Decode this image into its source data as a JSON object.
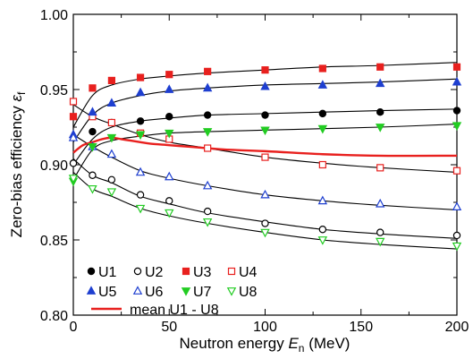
{
  "chart_data": {
    "type": "scatter",
    "xlabel": {
      "main": "Neutron energy ",
      "var": "E",
      "sub": "n",
      "unit": " (MeV)"
    },
    "ylabel": {
      "main": "Zero-bias efficiency ",
      "var": "ε",
      "sub": "f"
    },
    "xlim": [
      0,
      200
    ],
    "ylim": [
      0.8,
      1.0
    ],
    "xticks": [
      0,
      50,
      100,
      150,
      200
    ],
    "yticks": [
      0.8,
      0.85,
      0.9,
      0.95,
      1.0
    ],
    "yticklabels": [
      "0.80",
      "0.85",
      "0.90",
      "0.95",
      "1.00"
    ],
    "grid": false,
    "legend_position": "bottom-left",
    "series": [
      {
        "name": "U1",
        "marker": "circle",
        "filled": true,
        "color": "#000000",
        "x": [
          0,
          10,
          20,
          35,
          50,
          70,
          100,
          130,
          160,
          200
        ],
        "y": [
          0.901,
          0.922,
          0.928,
          0.929,
          0.932,
          0.933,
          0.933,
          0.934,
          0.935,
          0.936
        ],
        "fit": [
          0.9,
          0.917,
          0.925,
          0.929,
          0.931,
          0.933,
          0.934,
          0.935,
          0.936,
          0.937
        ]
      },
      {
        "name": "U2",
        "marker": "circle",
        "filled": false,
        "color": "#000000",
        "x": [
          0,
          10,
          20,
          35,
          50,
          70,
          100,
          130,
          160,
          200
        ],
        "y": [
          0.901,
          0.893,
          0.89,
          0.88,
          0.876,
          0.869,
          0.861,
          0.857,
          0.855,
          0.853
        ],
        "fit": [
          0.904,
          0.893,
          0.888,
          0.879,
          0.874,
          0.868,
          0.862,
          0.857,
          0.854,
          0.851
        ]
      },
      {
        "name": "U3",
        "marker": "square",
        "filled": true,
        "color": "#e8201e",
        "x": [
          0,
          10,
          20,
          35,
          50,
          70,
          100,
          130,
          160,
          200
        ],
        "y": [
          0.932,
          0.951,
          0.956,
          0.958,
          0.96,
          0.962,
          0.963,
          0.964,
          0.965,
          0.965
        ],
        "fit": [
          0.925,
          0.946,
          0.953,
          0.957,
          0.959,
          0.961,
          0.963,
          0.965,
          0.966,
          0.968
        ]
      },
      {
        "name": "U4",
        "marker": "square",
        "filled": false,
        "color": "#e8201e",
        "x": [
          0,
          10,
          20,
          35,
          50,
          70,
          100,
          130,
          160,
          200
        ],
        "y": [
          0.942,
          0.932,
          0.928,
          0.921,
          0.917,
          0.911,
          0.905,
          0.9,
          0.898,
          0.896
        ],
        "fit": [
          0.94,
          0.932,
          0.927,
          0.92,
          0.915,
          0.911,
          0.905,
          0.901,
          0.898,
          0.895
        ]
      },
      {
        "name": "U5",
        "marker": "triangle-up",
        "filled": true,
        "color": "#1e3fd0",
        "x": [
          0,
          10,
          20,
          35,
          50,
          70,
          100,
          130,
          160,
          200
        ],
        "y": [
          0.92,
          0.935,
          0.941,
          0.948,
          0.95,
          0.951,
          0.952,
          0.953,
          0.954,
          0.955
        ],
        "fit": [
          0.915,
          0.933,
          0.941,
          0.946,
          0.949,
          0.951,
          0.953,
          0.954,
          0.955,
          0.957
        ]
      },
      {
        "name": "U6",
        "marker": "triangle-up",
        "filled": false,
        "color": "#1e3fd0",
        "x": [
          0,
          10,
          20,
          35,
          50,
          70,
          100,
          130,
          160,
          200
        ],
        "y": [
          0.918,
          0.912,
          0.907,
          0.895,
          0.892,
          0.886,
          0.88,
          0.876,
          0.874,
          0.872
        ],
        "fit": [
          0.92,
          0.912,
          0.905,
          0.896,
          0.891,
          0.886,
          0.88,
          0.876,
          0.873,
          0.87
        ]
      },
      {
        "name": "U7",
        "marker": "triangle-down",
        "filled": true,
        "color": "#22cc22",
        "x": [
          0,
          10,
          20,
          35,
          50,
          70,
          100,
          130,
          160,
          200
        ],
        "y": [
          0.889,
          0.912,
          0.918,
          0.92,
          0.921,
          0.922,
          0.923,
          0.924,
          0.925,
          0.926
        ],
        "fit": [
          0.89,
          0.91,
          0.916,
          0.919,
          0.921,
          0.922,
          0.923,
          0.924,
          0.925,
          0.927
        ]
      },
      {
        "name": "U8",
        "marker": "triangle-down",
        "filled": false,
        "color": "#22cc22",
        "x": [
          0,
          10,
          20,
          35,
          50,
          70,
          100,
          130,
          160,
          200
        ],
        "y": [
          0.891,
          0.884,
          0.882,
          0.871,
          0.868,
          0.862,
          0.855,
          0.85,
          0.849,
          0.846
        ],
        "fit": [
          0.895,
          0.884,
          0.879,
          0.871,
          0.866,
          0.861,
          0.855,
          0.85,
          0.847,
          0.844
        ]
      },
      {
        "name": "mean U1 - U8",
        "marker": "line",
        "color": "#e8201e",
        "x": [
          0,
          5,
          10,
          15,
          20,
          25,
          30,
          35,
          40,
          50,
          60,
          70,
          80,
          100,
          130,
          160,
          200
        ],
        "y": [
          0.908,
          0.913,
          0.915,
          0.917,
          0.918,
          0.917,
          0.916,
          0.915,
          0.914,
          0.913,
          0.912,
          0.911,
          0.91,
          0.909,
          0.907,
          0.906,
          0.906
        ]
      }
    ]
  }
}
